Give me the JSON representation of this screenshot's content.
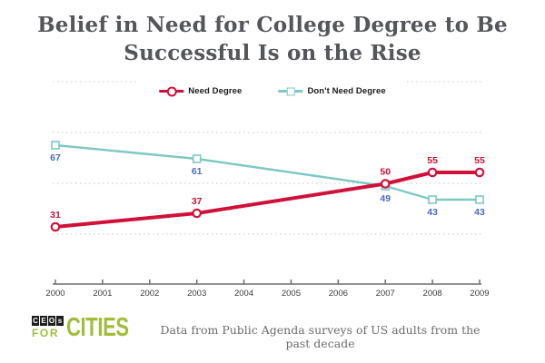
{
  "title": {
    "line1": "Belief in Need for College Degree to Be",
    "line2": "Successful Is on the Rise"
  },
  "legend": [
    {
      "label": "Need Degree",
      "marker": "circle",
      "color": "#d0103a"
    },
    {
      "label": "Don't Need Degree",
      "marker": "square",
      "color": "#7dc8c3"
    }
  ],
  "chart_data": {
    "type": "line",
    "x": [
      2000,
      2003,
      2007,
      2008,
      2009
    ],
    "series": [
      {
        "name": "Need Degree",
        "values": [
          31,
          37,
          50,
          55,
          55
        ],
        "color": "#d0103a",
        "marker": "circle",
        "label_color": "#d0103a",
        "label_position": "above",
        "line_width": 4
      },
      {
        "name": "Don't Need Degree",
        "values": [
          67,
          61,
          49,
          43,
          43
        ],
        "color": "#7dc8c3",
        "marker": "square",
        "label_color": "#4a6cbe",
        "label_position": "below",
        "line_width": 2.4
      }
    ],
    "xticks": [
      "2000",
      "2001",
      "2002",
      "2003",
      "2004",
      "2005",
      "2006",
      "2007",
      "2008",
      "2009"
    ],
    "x_range": [
      2000,
      2009
    ],
    "grid": "horizontal-dotted",
    "gridline_count": 4,
    "legend_position": "top-center",
    "data_labels": true,
    "y_axis_labels": "none"
  },
  "footer": {
    "logo": {
      "boxes": [
        "C",
        "E",
        "O",
        "s"
      ],
      "line2": "FOR",
      "brand": "CITIES"
    },
    "caption": "Data from Public Agenda surveys of US adults from the past decade"
  },
  "colors": {
    "title_text": "#55565a",
    "need_degree_line": "#d0103a",
    "dont_need_degree_line": "#7dc8c3",
    "dont_need_label_text": "#4a6cbe",
    "gridline": "#c6c6c6",
    "axis": "#6e6e6e",
    "tick_label_text": "#3a3a3a",
    "logo_green": "#a0be3c",
    "logo_dark": "#1d1d1d",
    "caption_text": "#6d6d6d"
  }
}
